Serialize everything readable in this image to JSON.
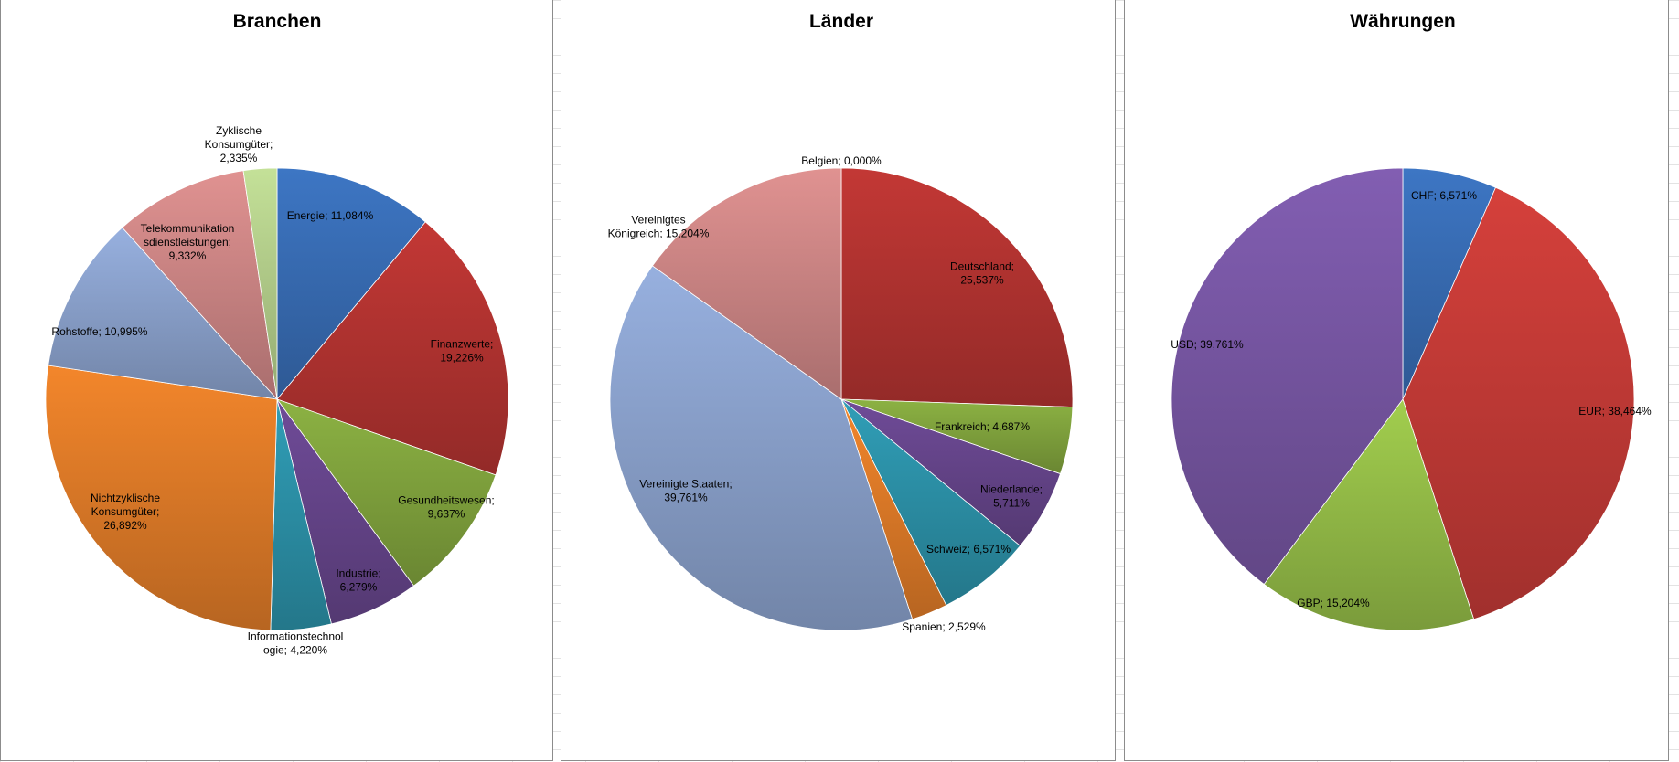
{
  "chart_data": [
    {
      "type": "pie",
      "title": "Branchen",
      "slices": [
        {
          "label_lines": [
            "Energie; 11,084%"
          ],
          "value": 11.084,
          "color": "#3a6fb9"
        },
        {
          "label_lines": [
            "Finanzwerte;",
            "19,226%"
          ],
          "value": 19.226,
          "color": "#b83532"
        },
        {
          "label_lines": [
            "Gesundheitswesen;",
            "9,637%"
          ],
          "value": 9.637,
          "color": "#84a83f"
        },
        {
          "label_lines": [
            "Industrie;",
            "6,279%"
          ],
          "value": 6.279,
          "color": "#69478f"
        },
        {
          "label_lines": [
            "Informationstechnol",
            "ogie; 4,220%"
          ],
          "value": 4.22,
          "color": "#2d95ad"
        },
        {
          "label_lines": [
            "Nichtzyklische",
            "Konsumgüter;",
            "26,892%"
          ],
          "value": 26.892,
          "color": "#e57e29"
        },
        {
          "label_lines": [
            "Rohstoffe; 10,995%"
          ],
          "value": 10.995,
          "color": "#8ea6d2"
        },
        {
          "label_lines": [
            "Telekommunikation",
            "sdienstleistungen;",
            "9,332%"
          ],
          "value": 9.332,
          "color": "#d38a89"
        },
        {
          "label_lines": [
            "Zyklische",
            "Konsumgüter;",
            "2,335%"
          ],
          "value": 2.335,
          "color": "#b9d48f"
        }
      ]
    },
    {
      "type": "pie",
      "title": "Länder",
      "slices": [
        {
          "label_lines": [
            "Belgien; 0,000%"
          ],
          "value": 0.0,
          "color": "#3a6fb9"
        },
        {
          "label_lines": [
            "Deutschland;",
            "25,537%"
          ],
          "value": 25.537,
          "color": "#b83532"
        },
        {
          "label_lines": [
            "Frankreich; 4,687%"
          ],
          "value": 4.687,
          "color": "#84a83f"
        },
        {
          "label_lines": [
            "Niederlande;",
            "5,711%"
          ],
          "value": 5.711,
          "color": "#69478f"
        },
        {
          "label_lines": [
            "Schweiz; 6,571%"
          ],
          "value": 6.571,
          "color": "#2d95ad"
        },
        {
          "label_lines": [
            "Spanien; 2,529%"
          ],
          "value": 2.529,
          "color": "#e57e29"
        },
        {
          "label_lines": [
            "Vereinigte Staaten;",
            "39,761%"
          ],
          "value": 39.761,
          "color": "#8ea6d2"
        },
        {
          "label_lines": [
            "Vereinigtes",
            "Königreich; 15,204%"
          ],
          "value": 15.204,
          "color": "#d38a89"
        }
      ]
    },
    {
      "type": "pie",
      "title": "Währungen",
      "slices": [
        {
          "label_lines": [
            "CHF; 6,571%"
          ],
          "value": 6.571,
          "color": "#3a6fb9"
        },
        {
          "label_lines": [
            "EUR; 38,464%"
          ],
          "value": 38.464,
          "color": "#c93c38"
        },
        {
          "label_lines": [
            "GBP; 15,204%"
          ],
          "value": 15.204,
          "color": "#99c24a"
        },
        {
          "label_lines": [
            "USD; 39,761%"
          ],
          "value": 39.761,
          "color": "#7b59a8"
        }
      ]
    }
  ]
}
